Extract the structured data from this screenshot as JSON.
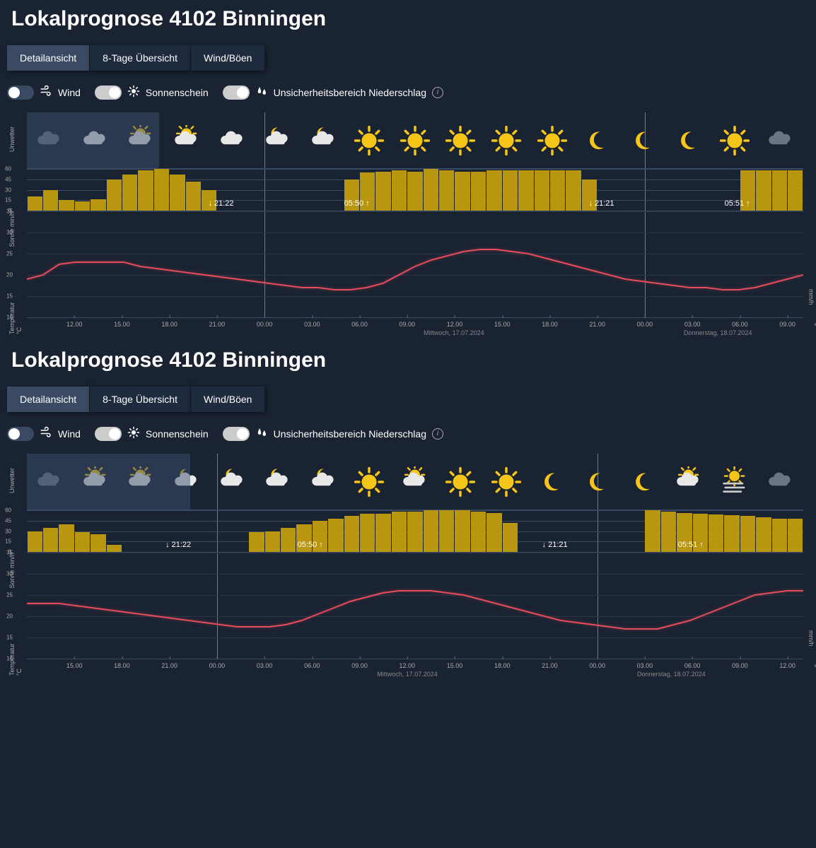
{
  "title": "Lokalprognose 4102 Binningen",
  "tabs": [
    {
      "label": "Detailansicht",
      "active": true
    },
    {
      "label": "8-Tage Übersicht",
      "active": false
    },
    {
      "label": "Wind/Böen",
      "active": false
    }
  ],
  "toggles": [
    {
      "label": "Wind",
      "on": false,
      "icon": "wind"
    },
    {
      "label": "Sonnenschein",
      "on": true,
      "icon": "sun"
    },
    {
      "label": "Unsicherheitsbereich Niederschlag",
      "on": true,
      "icon": "drops",
      "info": true
    }
  ],
  "axis_labels": {
    "unwetter": "Unwetter",
    "sonne": "Sonne min/h",
    "temp": "Temperatur °C",
    "precip": "Niederschlag mm/h"
  },
  "sun_axis": {
    "min": 0,
    "max": 60,
    "step": 15
  },
  "temp_axis": {
    "min": 10,
    "max": 35,
    "step": 5
  },
  "precip_axis": {
    "min": 0,
    "max": 10,
    "step": 2
  },
  "colors": {
    "bg": "#1a2332",
    "bar": "#b8960f",
    "temp_line": "#e74c5c",
    "grid": "#3a4a63",
    "grid_light": "#2a3548"
  },
  "panels": [
    {
      "highlight": {
        "start_pct": 0,
        "end_pct": 17
      },
      "start_hour": 9,
      "total_hours": 49,
      "day_dividers_pct": [
        30.6,
        79.6
      ],
      "x_ticks": [
        "12.00",
        "15.00",
        "18.00",
        "21.00",
        "00.00",
        "03.00",
        "06.00",
        "09.00",
        "12.00",
        "15.00",
        "18.00",
        "21.00",
        "00.00",
        "03.00",
        "06.00",
        "09.00"
      ],
      "x_tick_hours": [
        12,
        15,
        18,
        21,
        24,
        27,
        30,
        33,
        36,
        39,
        42,
        45,
        48,
        51,
        54,
        57
      ],
      "x_date_1": "Mittwoch, 17.07.2024",
      "x_date_2": "Donnerstag, 18.07.2024",
      "x_date_1_pct": 55,
      "x_date_2_pct": 89,
      "icons": [
        "cloud-dim",
        "cloud",
        "partly-sun",
        "partly-sun",
        "cloud",
        "partly-moon",
        "partly-moon",
        "sun",
        "sun",
        "sun",
        "sun",
        "sun",
        "moon",
        "moon",
        "moon",
        "sun",
        "cloud-dim"
      ],
      "sun_bars": [
        20,
        30,
        15,
        13,
        16,
        45,
        52,
        58,
        60,
        52,
        42,
        30,
        0,
        0,
        0,
        0,
        0,
        0,
        0,
        0,
        45,
        55,
        56,
        58,
        56,
        60,
        58,
        56,
        56,
        58,
        58,
        58,
        58,
        58,
        58,
        45,
        0,
        0,
        0,
        0,
        0,
        0,
        0,
        0,
        0,
        58,
        58,
        58,
        58
      ],
      "sun_markers": [
        {
          "text": "21:22",
          "dir": "down",
          "pct": 25
        },
        {
          "text": "05:50",
          "dir": "up",
          "pct": 42.5
        },
        {
          "text": "21:21",
          "dir": "down",
          "pct": 74
        },
        {
          "text": "05:51",
          "dir": "up",
          "pct": 91.5
        }
      ],
      "temp_line": [
        19,
        20,
        22.5,
        23,
        23,
        23,
        23,
        22,
        21.5,
        21,
        20.5,
        20,
        19.5,
        19,
        18.5,
        18,
        17.5,
        17,
        17,
        16.5,
        16.5,
        17,
        18,
        20,
        22,
        23.5,
        24.5,
        25.5,
        26,
        26,
        25.5,
        25,
        24,
        23,
        22,
        21,
        20,
        19,
        18.5,
        18,
        17.5,
        17,
        17,
        16.5,
        16.5,
        17,
        18,
        19,
        20
      ]
    },
    {
      "highlight": {
        "start_pct": 0,
        "end_pct": 21
      },
      "start_hour": 12,
      "total_hours": 49,
      "day_dividers_pct": [
        24.5,
        73.5
      ],
      "x_ticks": [
        "15.00",
        "18.00",
        "21.00",
        "00.00",
        "03.00",
        "06.00",
        "09.00",
        "12.00",
        "15.00",
        "18.00",
        "21.00",
        "00.00",
        "03.00",
        "06.00",
        "09.00",
        "12.00"
      ],
      "x_tick_hours": [
        15,
        18,
        21,
        24,
        27,
        30,
        33,
        36,
        39,
        42,
        45,
        48,
        51,
        54,
        57,
        60
      ],
      "x_date_1": "Mittwoch, 17.07.2024",
      "x_date_2": "Donnerstag, 18.07.2024",
      "x_date_1_pct": 49,
      "x_date_2_pct": 83,
      "icons": [
        "cloud-dim",
        "partly-sun",
        "partly-sun",
        "partly-moon",
        "partly-moon",
        "partly-moon",
        "partly-moon",
        "sun",
        "partly-sun",
        "sun",
        "sun",
        "moon",
        "moon",
        "moon",
        "partly-sun",
        "fog-sun",
        "cloud-dim"
      ],
      "sun_bars": [
        30,
        35,
        40,
        28,
        25,
        10,
        0,
        0,
        0,
        0,
        0,
        0,
        0,
        0,
        28,
        30,
        35,
        40,
        45,
        48,
        52,
        55,
        55,
        58,
        58,
        60,
        60,
        60,
        58,
        56,
        42,
        0,
        0,
        0,
        0,
        0,
        0,
        0,
        0,
        60,
        58,
        56,
        55,
        54,
        53,
        52,
        50,
        48,
        48
      ],
      "sun_markers": [
        {
          "text": "21:22",
          "dir": "down",
          "pct": 19.5
        },
        {
          "text": "05:50",
          "dir": "up",
          "pct": 36.5
        },
        {
          "text": "21:21",
          "dir": "down",
          "pct": 68
        },
        {
          "text": "05:51",
          "dir": "up",
          "pct": 85.5
        }
      ],
      "temp_line": [
        23,
        23,
        23,
        22.5,
        22,
        21.5,
        21,
        20.5,
        20,
        19.5,
        19,
        18.5,
        18,
        17.5,
        17.5,
        17.5,
        18,
        19,
        20.5,
        22,
        23.5,
        24.5,
        25.5,
        26,
        26,
        26,
        25.5,
        25,
        24,
        23,
        22,
        21,
        20,
        19,
        18.5,
        18,
        17.5,
        17,
        17,
        17,
        18,
        19,
        20.5,
        22,
        23.5,
        25,
        25.5,
        26,
        26
      ]
    }
  ]
}
